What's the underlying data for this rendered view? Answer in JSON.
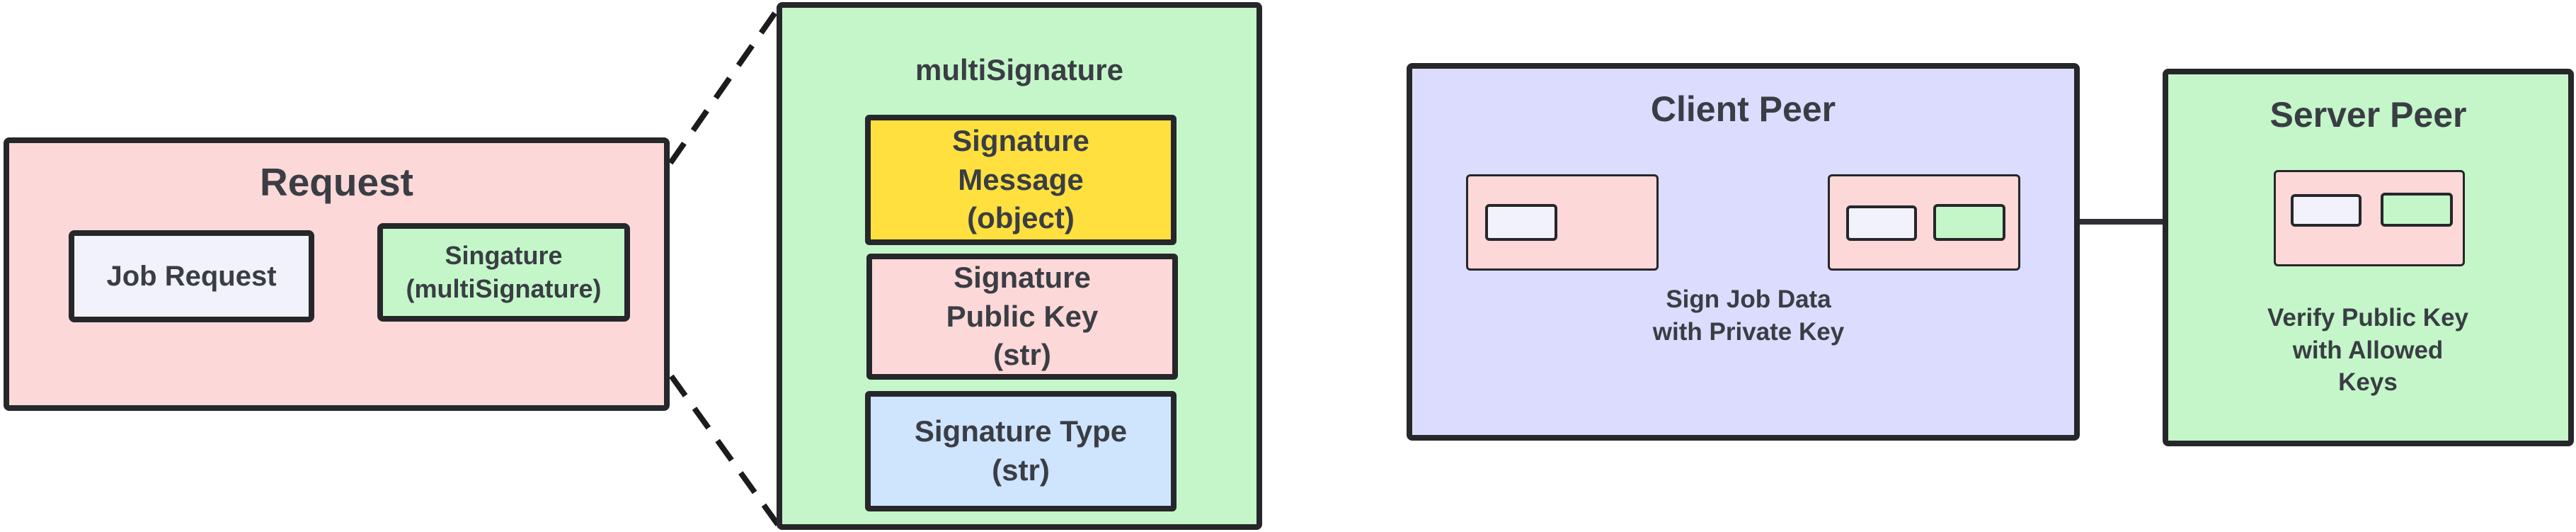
{
  "request": {
    "title": "Request",
    "job_request": "Job Request",
    "signature": "Singature\n(multiSignature)",
    "fill": "#fdd8d8"
  },
  "multi_signature": {
    "title": "multiSignature",
    "message": "Signature\nMessage\n(object)",
    "public_key": "Signature\nPublic Key\n(str)",
    "type": "Signature Type\n(str)",
    "fill": "#c4f6c9"
  },
  "client_peer": {
    "title": "Client Peer",
    "caption": "Sign Job Data\nwith Private Key",
    "icon": "shield-key-icon",
    "fill": "#dcdcfe"
  },
  "server_peer": {
    "title": "Server Peer",
    "caption": "Verify Public Key\nwith Allowed\nKeys",
    "fill": "#c4f6c9"
  },
  "colors": {
    "pink": "#fdd8d8",
    "green": "#c4f6c9",
    "lavender": "#dcdcfe",
    "yellow": "#ffe03f",
    "light_blue": "#cfe4fd",
    "job_request": "#f1f2fb",
    "shield": "#2f7cf6"
  }
}
